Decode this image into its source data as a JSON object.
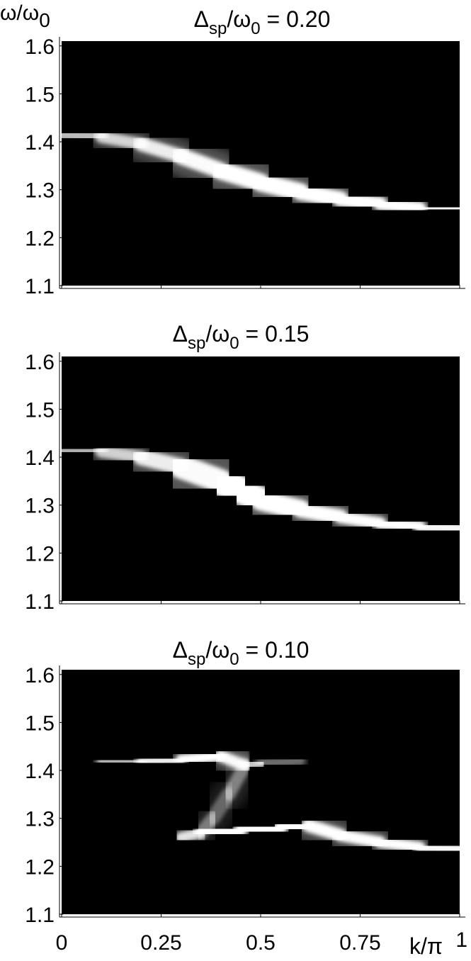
{
  "figure": {
    "y_axis_label": {
      "main": "ω/ω",
      "sub": "0"
    },
    "x_axis_label": "k/π",
    "x_tick_labels": [
      "0",
      "0.25",
      "0.5",
      "0.75",
      "1"
    ],
    "y_tick_labels": [
      "1.1",
      "1.2",
      "1.3",
      "1.4",
      "1.5",
      "1.6"
    ]
  },
  "chart_data": [
    {
      "type": "heatmap",
      "title": {
        "symbol": "Δ",
        "sub": "sp",
        "mid": "/ω",
        "sub2": "0",
        "tail": " = 0.20"
      },
      "xlabel": "k/π",
      "ylabel": "ω/ω0",
      "xlim": [
        0,
        1
      ],
      "ylim": [
        1.1,
        1.61
      ],
      "colormap": "grayscale (black = 0, white = high intensity)",
      "bands": [
        {
          "name": "",
          "k": [
            0,
            0.1,
            0.2,
            0.3,
            0.4,
            0.5,
            0.6,
            0.7,
            0.8,
            0.9,
            1.0
          ],
          "omega": [
            1.415,
            1.41,
            1.395,
            1.37,
            1.34,
            1.315,
            1.295,
            1.28,
            1.27,
            1.262,
            1.26
          ],
          "width": [
            0.012,
            0.012,
            0.013,
            0.016,
            0.018,
            0.02,
            0.018,
            0.016,
            0.014,
            0.012,
            0.012
          ],
          "intensity": [
            0.6,
            0.7,
            0.85,
            0.95,
            1,
            1,
            1,
            1,
            1,
            1,
            0.9
          ]
        }
      ]
    },
    {
      "type": "heatmap",
      "title": {
        "symbol": "Δ",
        "sub": "sp",
        "mid": "/ω",
        "sub2": "0",
        "tail": " = 0.15"
      },
      "xlabel": "k/π",
      "ylabel": "ω/ω0",
      "xlim": [
        0,
        1
      ],
      "ylim": [
        1.1,
        1.61
      ],
      "colormap": "grayscale (black = 0, white = high intensity)",
      "bands": [
        {
          "name": "",
          "k": [
            0,
            0.1,
            0.2,
            0.3,
            0.4,
            0.45,
            0.5,
            0.6,
            0.7,
            0.8,
            0.9,
            1.0
          ],
          "omega": [
            1.415,
            1.412,
            1.4,
            1.38,
            1.35,
            1.33,
            1.31,
            1.29,
            1.275,
            1.262,
            1.255,
            1.25
          ],
          "width": [
            0.012,
            0.012,
            0.014,
            0.02,
            0.03,
            0.03,
            0.025,
            0.018,
            0.014,
            0.012,
            0.012,
            0.012
          ],
          "intensity": [
            0.55,
            0.65,
            0.85,
            0.95,
            1,
            1,
            1,
            1,
            1,
            1,
            1,
            0.9
          ]
        }
      ]
    },
    {
      "type": "heatmap",
      "title": {
        "symbol": "Δ",
        "sub": "sp",
        "mid": "/ω",
        "sub2": "0",
        "tail": " = 0.10"
      },
      "xlabel": "k/π",
      "ylabel": "ω/ω0",
      "xlim": [
        0,
        1
      ],
      "ylim": [
        1.1,
        1.61
      ],
      "colormap": "grayscale (black = 0, white = high intensity)",
      "bands": [
        {
          "name": "",
          "k": [
            0,
            0.1,
            0.2,
            0.3,
            0.4,
            0.46,
            0.5,
            0.6,
            0.7,
            0.8,
            0.9,
            1.0
          ],
          "omega": [
            1.42,
            1.42,
            1.418,
            1.422,
            1.43,
            1.41,
            1.415,
            1.42,
            1.42,
            1.42,
            1.42,
            1.42
          ],
          "width": [
            0.01,
            0.01,
            0.01,
            0.01,
            0.012,
            0.012,
            0.01,
            0.01,
            0.01,
            0.01,
            0.01,
            0.01
          ],
          "intensity": [
            0.3,
            0.45,
            0.8,
            1,
            1,
            0.95,
            0.45,
            0.25,
            0.22,
            0.2,
            0.2,
            0.2
          ]
        },
        {
          "name": "",
          "k": [
            0.3,
            0.35,
            0.45,
            0.55,
            0.62,
            0.7,
            0.8,
            0.9,
            1.0
          ],
          "omega": [
            1.26,
            1.27,
            1.275,
            1.28,
            1.285,
            1.265,
            1.25,
            1.24,
            1.235
          ],
          "width": [
            0.01,
            0.012,
            0.013,
            0.014,
            0.014,
            0.013,
            0.012,
            0.011,
            0.011
          ],
          "intensity": [
            0.7,
            1,
            1,
            1,
            1,
            1,
            1,
            1,
            0.95
          ]
        },
        {
          "name": "",
          "k": [
            0.46,
            0.42,
            0.38,
            0.35
          ],
          "omega": [
            1.41,
            1.35,
            1.3,
            1.27
          ],
          "width": [
            0.012,
            0.015,
            0.015,
            0.012
          ],
          "intensity": [
            0.5,
            0.35,
            0.3,
            0.5
          ]
        }
      ]
    }
  ]
}
